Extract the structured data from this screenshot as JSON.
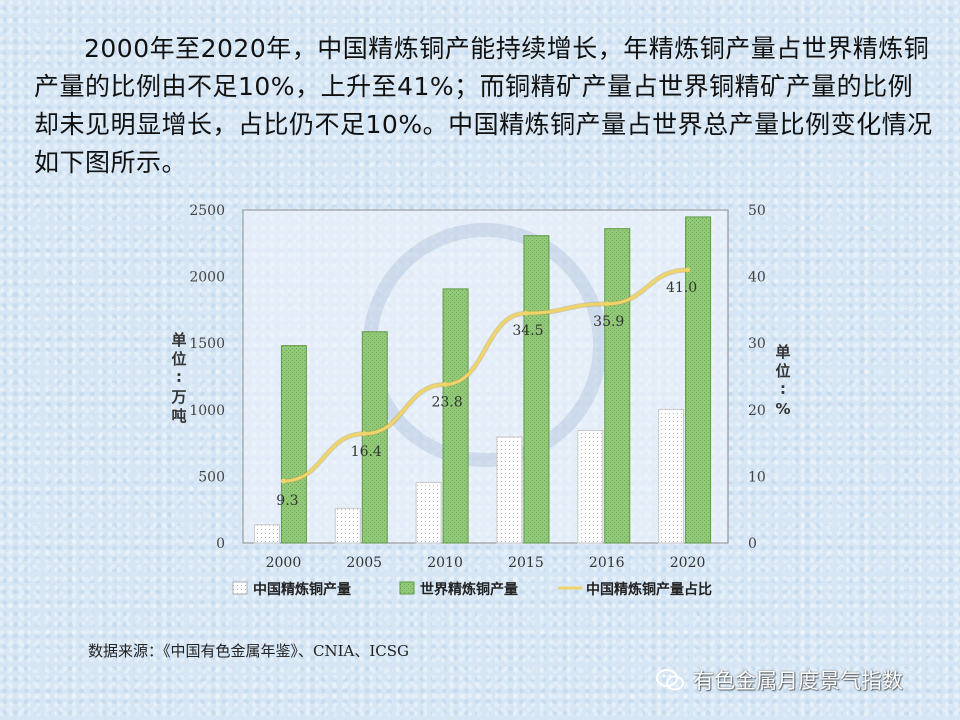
{
  "intro_text": "2000年至2020年，中国精炼铜产能持续增长，年精炼铜产量占世界精炼铜产量的比例由不足10%，上升至41%；而铜精矿产量占世界铜精矿产量的比例却未见明显增长，占比仍不足10%。中国精炼铜产量占世界总产量比例变化情况如下图所示。",
  "source_text": "数据来源：《中国有色金属年鉴》、CNIA、ICSG",
  "watermark_text": "有色金属月度景气指数",
  "chart_data": {
    "type": "bar",
    "categories": [
      "2000",
      "2005",
      "2010",
      "2015",
      "2016",
      "2020"
    ],
    "series": [
      {
        "name": "中国精炼铜产量",
        "kind": "bar",
        "axis": "left",
        "values": [
          137,
          260,
          454,
          796,
          844,
          1003
        ],
        "color": "#ffffff"
      },
      {
        "name": "世界精炼铜产量",
        "kind": "bar",
        "axis": "left",
        "values": [
          1482,
          1586,
          1908,
          2307,
          2360,
          2448
        ],
        "color": "#8cc46f"
      },
      {
        "name": "中国精炼铜产量占比",
        "kind": "line",
        "axis": "right",
        "values": [
          9.3,
          16.4,
          23.8,
          34.5,
          35.9,
          41.0
        ],
        "labels": [
          "9.3",
          "16.4",
          "23.8",
          "34.5",
          "35.9",
          "41.0"
        ],
        "color": "#f0d46a"
      }
    ],
    "y_left": {
      "label": "单位：万吨",
      "range": [
        0,
        2500
      ],
      "ticks": [
        "0",
        "500",
        "1000",
        "1500",
        "2000",
        "2500"
      ]
    },
    "y_right": {
      "label": "单位：%",
      "range": [
        0,
        50
      ],
      "ticks": [
        "0",
        "10",
        "20",
        "30",
        "40",
        "50"
      ]
    },
    "grid": false,
    "legend": "bottom"
  }
}
